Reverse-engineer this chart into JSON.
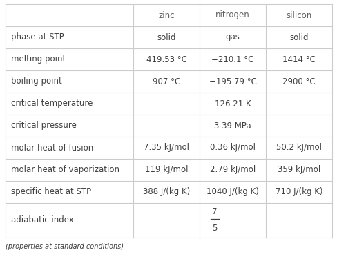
{
  "col_headers": [
    "",
    "zinc",
    "nitrogen",
    "silicon"
  ],
  "rows": [
    [
      "phase at STP",
      "solid",
      "gas",
      "solid"
    ],
    [
      "melting point",
      "419.53 °C",
      "−210.1 °C",
      "1414 °C"
    ],
    [
      "boiling point",
      "907 °C",
      "−195.79 °C",
      "2900 °C"
    ],
    [
      "critical temperature",
      "",
      "126.21 K",
      ""
    ],
    [
      "critical pressure",
      "",
      "3.39 MPa",
      ""
    ],
    [
      "molar heat of fusion",
      "7.35 kJ/mol",
      "0.36 kJ/mol",
      "50.2 kJ/mol"
    ],
    [
      "molar heat of vaporization",
      "119 kJ/mol",
      "2.79 kJ/mol",
      "359 kJ/mol"
    ],
    [
      "specific heat at STP",
      "388 J/(kg K)",
      "1040 J/(kg K)",
      "710 J/(kg K)"
    ],
    [
      "adiabatic index",
      "",
      "FRACTION_7_5",
      ""
    ]
  ],
  "footnote": "(properties at standard conditions)",
  "background_color": "#ffffff",
  "header_text_color": "#606060",
  "cell_text_color": "#404040",
  "line_color": "#cccccc",
  "font_size": 8.5,
  "header_font_size": 8.5,
  "footnote_font_size": 7.0
}
